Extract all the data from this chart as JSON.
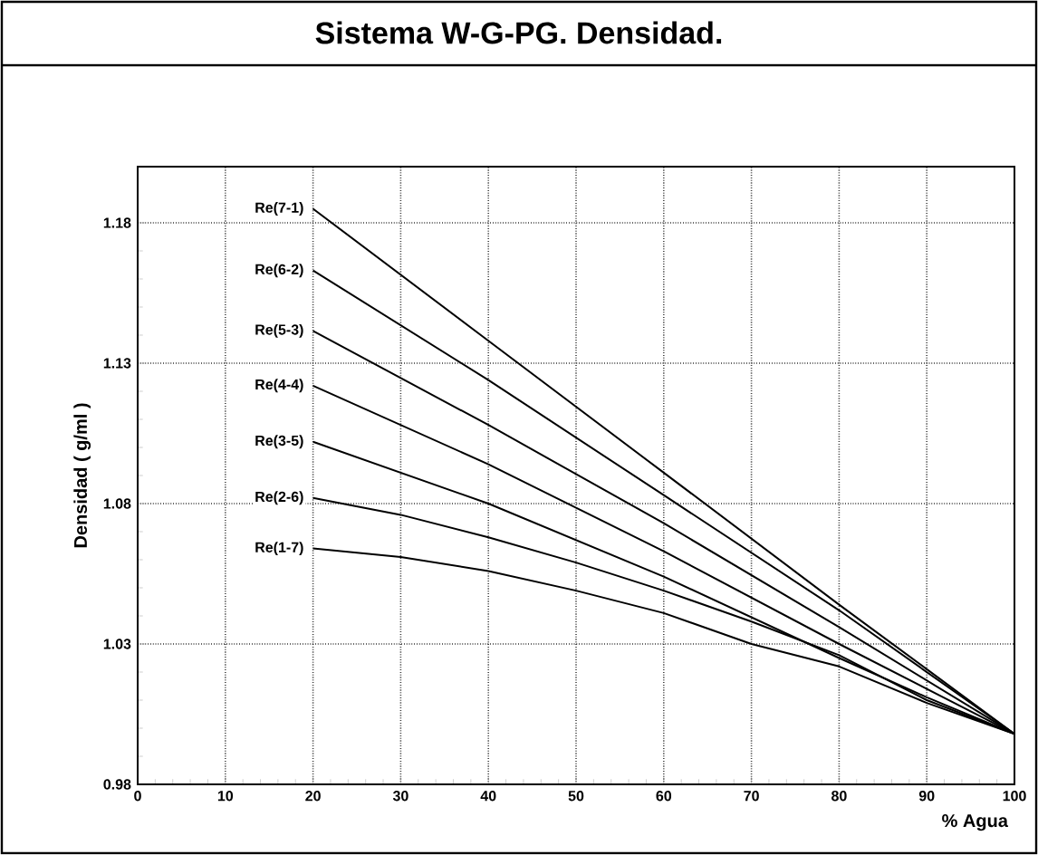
{
  "chart_data": {
    "type": "line",
    "title": "Sistema W-G-PG. Densidad.",
    "xlabel": "% Agua",
    "ylabel": "Densidad ( g/ml )",
    "xlim": [
      0,
      100
    ],
    "xticks": [
      0,
      10,
      20,
      30,
      40,
      50,
      60,
      70,
      80,
      90,
      100
    ],
    "ylim": [
      0.98,
      1.2
    ],
    "yticks": [
      0.98,
      1.03,
      1.08,
      1.13,
      1.18
    ],
    "grid": true,
    "x": [
      20,
      40,
      60,
      80,
      90,
      100
    ],
    "series": [
      {
        "name": "Re(7-1)",
        "color": "#000000",
        "values": [
          1.185,
          1.138,
          1.091,
          1.044,
          1.021,
          0.998
        ]
      },
      {
        "name": "Re(6-2)",
        "color": "#000000",
        "values": [
          1.163,
          1.124,
          1.083,
          1.042,
          1.02,
          0.998
        ]
      },
      {
        "name": "Re(5-3)",
        "color": "#000000",
        "values": [
          1.1415,
          1.108,
          1.073,
          1.036,
          1.017,
          0.998
        ]
      },
      {
        "name": "Re(4-4)",
        "color": "#000000",
        "values": [
          1.122,
          1.094,
          1.063,
          1.03,
          1.014,
          0.998
        ]
      },
      {
        "name": "Re(3-5)",
        "color": "#000000",
        "values": [
          1.102,
          1.08,
          1.054,
          1.025,
          1.011,
          0.998
        ]
      },
      {
        "name": "Re(2-6)",
        "color": "#000000",
        "x": [
          20,
          30,
          40,
          50,
          60,
          70,
          80,
          90,
          100
        ],
        "values": [
          1.082,
          1.076,
          1.068,
          1.059,
          1.049,
          1.038,
          1.026,
          1.01,
          0.998
        ]
      },
      {
        "name": "Re(1-7)",
        "color": "#000000",
        "x": [
          20,
          30,
          40,
          50,
          60,
          70,
          80,
          90,
          100
        ],
        "values": [
          1.064,
          1.061,
          1.056,
          1.049,
          1.041,
          1.03,
          1.022,
          1.009,
          0.998
        ]
      }
    ]
  }
}
